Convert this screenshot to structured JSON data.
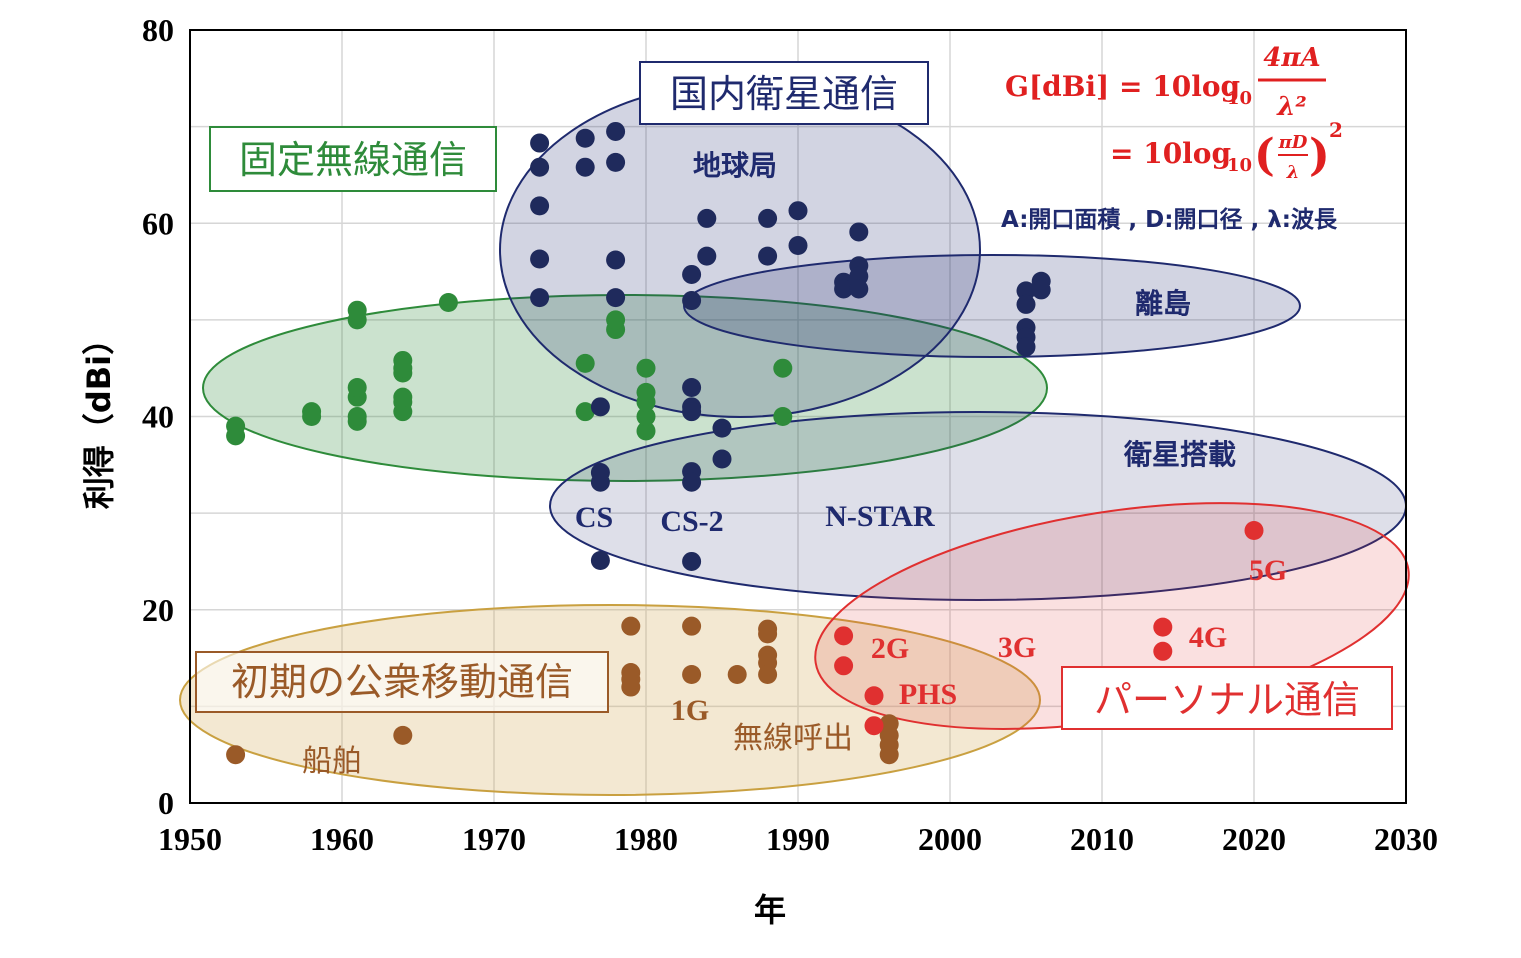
{
  "chart_data": {
    "type": "scatter",
    "xlabel": "年",
    "ylabel": "利得（dBi）",
    "xlim": [
      1950,
      2030
    ],
    "ylim": [
      0,
      80
    ],
    "x_ticks": [
      "1950",
      "1960",
      "1970",
      "1980",
      "1990",
      "2000",
      "2010",
      "2020",
      "2030"
    ],
    "y_ticks": [
      "0",
      "20",
      "40",
      "60",
      "80"
    ],
    "grid": true,
    "colors": {
      "fixed": "#2e8b3a",
      "satellite": "#1f2a5c",
      "mobile": "#9a5a28",
      "personal": "#e03030",
      "formula": "#e02020",
      "note": "#1f2a6e"
    },
    "series": [
      {
        "name": "固定無線通信",
        "points": [
          [
            1953,
            38
          ],
          [
            1953,
            39
          ],
          [
            1958,
            40
          ],
          [
            1958,
            40.5
          ],
          [
            1961,
            39.5
          ],
          [
            1961,
            40
          ],
          [
            1961,
            42
          ],
          [
            1961,
            43
          ],
          [
            1961,
            50
          ],
          [
            1961,
            51
          ],
          [
            1964,
            40.5
          ],
          [
            1964,
            41.5
          ],
          [
            1964,
            42
          ],
          [
            1964,
            44.5
          ],
          [
            1964,
            45
          ],
          [
            1964,
            45.8
          ],
          [
            1967,
            51.8
          ],
          [
            1976,
            40.5
          ],
          [
            1976,
            45.5
          ],
          [
            1978,
            49
          ],
          [
            1978,
            50
          ],
          [
            1980,
            38.5
          ],
          [
            1980,
            40
          ],
          [
            1980,
            41.5
          ],
          [
            1980,
            42.5
          ],
          [
            1980,
            45
          ],
          [
            1989,
            40
          ],
          [
            1989,
            45
          ]
        ]
      },
      {
        "name": "国内衛星通信",
        "points": [
          [
            1973,
            68.3
          ],
          [
            1973,
            65.8
          ],
          [
            1973,
            61.8
          ],
          [
            1973,
            56.3
          ],
          [
            1973,
            52.3
          ],
          [
            1976,
            68.8
          ],
          [
            1976,
            65.8
          ],
          [
            1978,
            69.5
          ],
          [
            1978,
            66.3
          ],
          [
            1978,
            56.2
          ],
          [
            1978,
            52.3
          ],
          [
            1977,
            41
          ],
          [
            1977,
            34.2
          ],
          [
            1977,
            33.2
          ],
          [
            1977,
            25.1
          ],
          [
            1983,
            54.7
          ],
          [
            1983,
            52
          ],
          [
            1983,
            43
          ],
          [
            1983,
            41
          ],
          [
            1983,
            40.5
          ],
          [
            1983,
            34.3
          ],
          [
            1983,
            33.2
          ],
          [
            1983,
            25
          ],
          [
            1984,
            60.5
          ],
          [
            1984,
            56.6
          ],
          [
            1985,
            38.8
          ],
          [
            1985,
            35.6
          ],
          [
            1988,
            60.5
          ],
          [
            1988,
            56.6
          ],
          [
            1990,
            61.3
          ],
          [
            1990,
            57.7
          ],
          [
            1993,
            53.9
          ],
          [
            1993,
            53.2
          ],
          [
            1994,
            59.1
          ],
          [
            1994,
            55.6
          ],
          [
            1994,
            54.5
          ],
          [
            1994,
            53.2
          ],
          [
            2005,
            53
          ],
          [
            2005,
            51.6
          ],
          [
            2005,
            49.2
          ],
          [
            2005,
            48.2
          ],
          [
            2005,
            47.2
          ],
          [
            2006,
            54
          ],
          [
            2006,
            53.1
          ]
        ]
      },
      {
        "name": "初期の公衆移動通信",
        "points": [
          [
            1953,
            5
          ],
          [
            1964,
            7
          ],
          [
            1979,
            18.3
          ],
          [
            1979,
            13.5
          ],
          [
            1979,
            12.8
          ],
          [
            1979,
            12
          ],
          [
            1983,
            18.3
          ],
          [
            1983,
            13.3
          ],
          [
            1986,
            13.3
          ],
          [
            1988,
            18
          ],
          [
            1988,
            17.5
          ],
          [
            1988,
            15.3
          ],
          [
            1988,
            14.5
          ],
          [
            1988,
            13.3
          ],
          [
            1996,
            8.2
          ],
          [
            1996,
            7
          ],
          [
            1996,
            6
          ],
          [
            1996,
            5
          ]
        ]
      },
      {
        "name": "パーソナル通信",
        "points": [
          [
            1993,
            17.3
          ],
          [
            1993,
            14.2
          ],
          [
            1995,
            11.1
          ],
          [
            1995,
            8
          ],
          [
            2014,
            18.2
          ],
          [
            2014,
            15.7
          ],
          [
            2020,
            28.2
          ]
        ]
      }
    ],
    "region_labels": {
      "fixed": "固定無線通信",
      "satellite": "国内衛星通信",
      "mobile": "初期の公衆移動通信",
      "personal": "パーソナル通信",
      "earth_station": "地球局",
      "island": "離島",
      "onboard": "衛星搭載",
      "cs": "CS",
      "cs2": "CS-2",
      "nstar": "N-STAR",
      "ship": "船舶",
      "g1": "1G",
      "pager": "無線呼出",
      "g2": "2G",
      "phs": "PHS",
      "g3": "3G",
      "g4": "4G",
      "g5": "5G"
    },
    "formula": {
      "line1_lhs": "G[dBi] = 10log",
      "sub10": "10",
      "frac1_num": "4πA",
      "frac1_den": "λ²",
      "line2_lhs": "= 10log",
      "frac2_num": "πD",
      "frac2_den": "λ",
      "exp": "2",
      "legend": "A:開口面積 , D:開口径 , λ:波長"
    }
  }
}
